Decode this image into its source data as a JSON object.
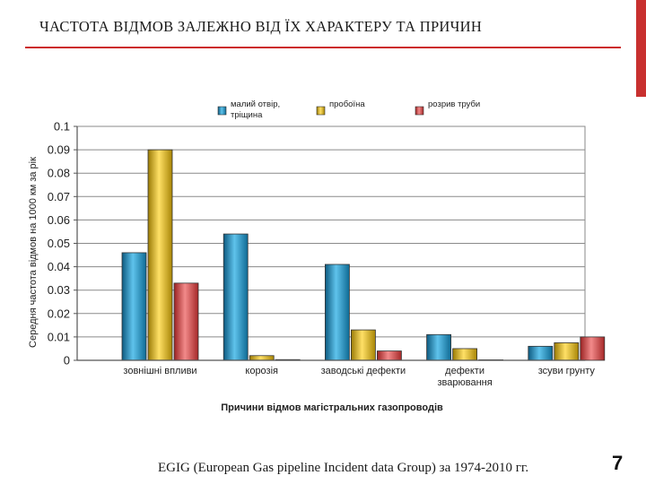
{
  "slide": {
    "title": "ЧАСТОТА ВІДМОВ ЗАЛЕЖНО ВІД ЇХ ХАРАКТЕРУ ТА ПРИЧИН",
    "source": "EGIG (European Gas pipeline Incident data Group) за 1974-2010 гг.",
    "page_number": "7",
    "accent_color": "#c8302f"
  },
  "chart_data": {
    "type": "bar",
    "title": "",
    "xlabel": "Причини відмов магістральних газопроводів",
    "ylabel": "Середня частота відмов на 1000 км за рік",
    "ylim": [
      0,
      0.1
    ],
    "yticks": [
      "0",
      "0.01",
      "0.02",
      "0.03",
      "0.04",
      "0.05",
      "0.06",
      "0.07",
      "0.08",
      "0.09",
      "0.1"
    ],
    "grid": true,
    "legend_position": "top",
    "categories": [
      [
        "зовнішні впливи"
      ],
      [
        "корозія"
      ],
      [
        "заводські дефекти"
      ],
      [
        "дефекти",
        "зварювання"
      ],
      [
        "зсуви грунту"
      ]
    ],
    "series": [
      {
        "name": [
          "малий отвір,",
          "тріщина"
        ],
        "color": "#1f8fc0",
        "values": [
          0.046,
          0.054,
          0.041,
          0.011,
          0.006
        ]
      },
      {
        "name": [
          "пробоїна"
        ],
        "color": "#e0b416",
        "values": [
          0.09,
          0.002,
          0.013,
          0.005,
          0.0075
        ]
      },
      {
        "name": [
          "розрив труби"
        ],
        "color": "#d94545",
        "values": [
          0.033,
          0.0003,
          0.004,
          0.0002,
          0.01
        ]
      }
    ]
  }
}
